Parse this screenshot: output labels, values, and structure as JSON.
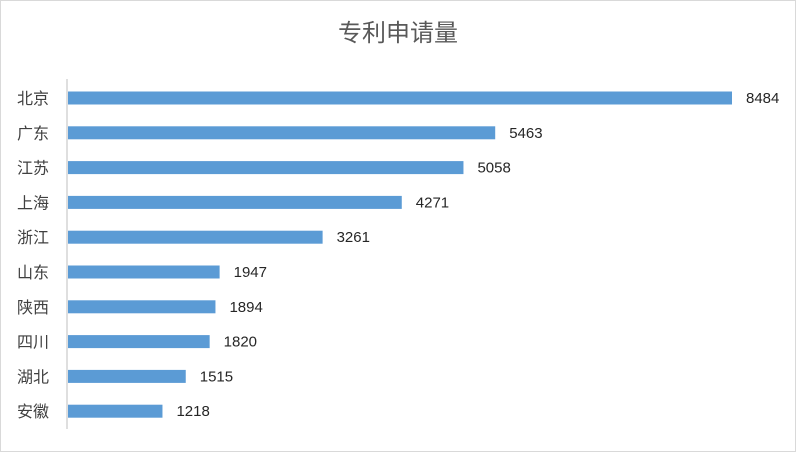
{
  "chart_data": {
    "type": "bar",
    "orientation": "horizontal",
    "title": "专利申请量",
    "categories": [
      "北京",
      "广东",
      "江苏",
      "上海",
      "浙江",
      "山东",
      "陕西",
      "四川",
      "湖北",
      "安徽"
    ],
    "values": [
      8484,
      5463,
      5058,
      4271,
      3261,
      1947,
      1894,
      1820,
      1515,
      1218
    ],
    "xlim": [
      0,
      8484
    ],
    "bar_color": "#5b9bd5",
    "grid": false,
    "legend": "none",
    "data_labels": true
  }
}
